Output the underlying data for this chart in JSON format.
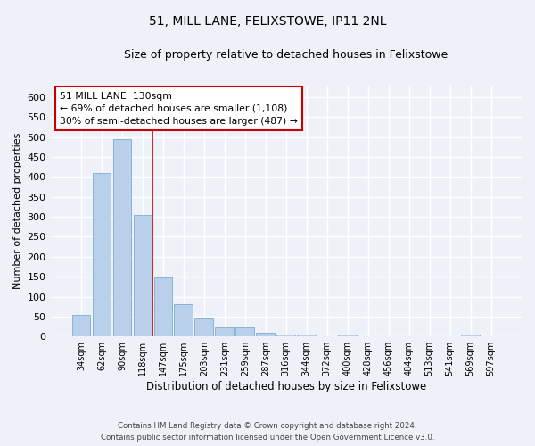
{
  "title": "51, MILL LANE, FELIXSTOWE, IP11 2NL",
  "subtitle": "Size of property relative to detached houses in Felixstowe",
  "xlabel": "Distribution of detached houses by size in Felixstowe",
  "ylabel": "Number of detached properties",
  "categories": [
    "34sqm",
    "62sqm",
    "90sqm",
    "118sqm",
    "147sqm",
    "175sqm",
    "203sqm",
    "231sqm",
    "259sqm",
    "287sqm",
    "316sqm",
    "344sqm",
    "372sqm",
    "400sqm",
    "428sqm",
    "456sqm",
    "484sqm",
    "513sqm",
    "541sqm",
    "569sqm",
    "597sqm"
  ],
  "values": [
    55,
    410,
    495,
    305,
    148,
    80,
    45,
    22,
    22,
    10,
    6,
    5,
    0,
    5,
    0,
    0,
    0,
    0,
    0,
    5,
    0
  ],
  "bar_color": "#b8d0ea",
  "bar_edge_color": "#7aadd4",
  "vline_color": "#cc0000",
  "ylim": [
    0,
    630
  ],
  "yticks": [
    0,
    50,
    100,
    150,
    200,
    250,
    300,
    350,
    400,
    450,
    500,
    550,
    600
  ],
  "footer_line1": "Contains HM Land Registry data © Crown copyright and database right 2024.",
  "footer_line2": "Contains public sector information licensed under the Open Government Licence v3.0.",
  "background_color": "#eef2f8",
  "grid_color": "#ffffff",
  "title_fontsize": 10,
  "subtitle_fontsize": 9,
  "bar_width": 0.9,
  "annotation_title": "51 MILL LANE: 130sqm",
  "annotation_line1": "← 69% of detached houses are smaller (1,108)",
  "annotation_line2": "30% of semi-detached houses are larger (487) →",
  "annotation_box_color": "#ffffff",
  "annotation_box_edge_color": "#cc0000"
}
